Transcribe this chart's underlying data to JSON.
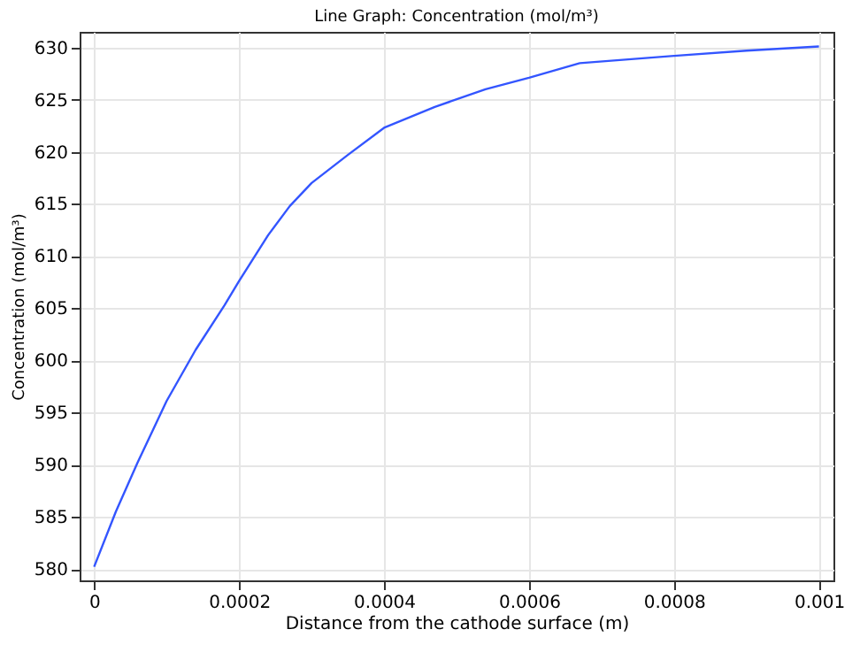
{
  "chart_data": {
    "type": "line",
    "title": "Line Graph: Concentration (mol/m³)",
    "xlabel": "Distance from the cathode surface (m)",
    "ylabel": "Concentration (mol/m³)",
    "x": [
      0,
      3e-05,
      6e-05,
      0.0001,
      0.00014,
      0.00018,
      0.0002,
      0.00024,
      0.00027,
      0.0003,
      0.00035,
      0.0004,
      0.00047,
      0.00054,
      0.0006,
      0.00067,
      0.0008,
      0.0009,
      0.001
    ],
    "series": [
      {
        "color": "#3355ff",
        "values": [
          580.2,
          585.5,
          590.2,
          596.1,
          601,
          605.3,
          607.6,
          612,
          614.8,
          617,
          619.7,
          622.3,
          624.3,
          626,
          627.1,
          628.5,
          629.2,
          629.7,
          630.1
        ]
      }
    ],
    "xlim": [
      -2e-05,
      0.00102
    ],
    "ylim": [
      578.9,
      631.5
    ],
    "xticks": [
      0,
      0.0002,
      0.0004,
      0.0006,
      0.0008,
      0.001
    ],
    "yticks": [
      580,
      585,
      590,
      595,
      600,
      605,
      610,
      615,
      620,
      625,
      630
    ],
    "grid": true
  }
}
